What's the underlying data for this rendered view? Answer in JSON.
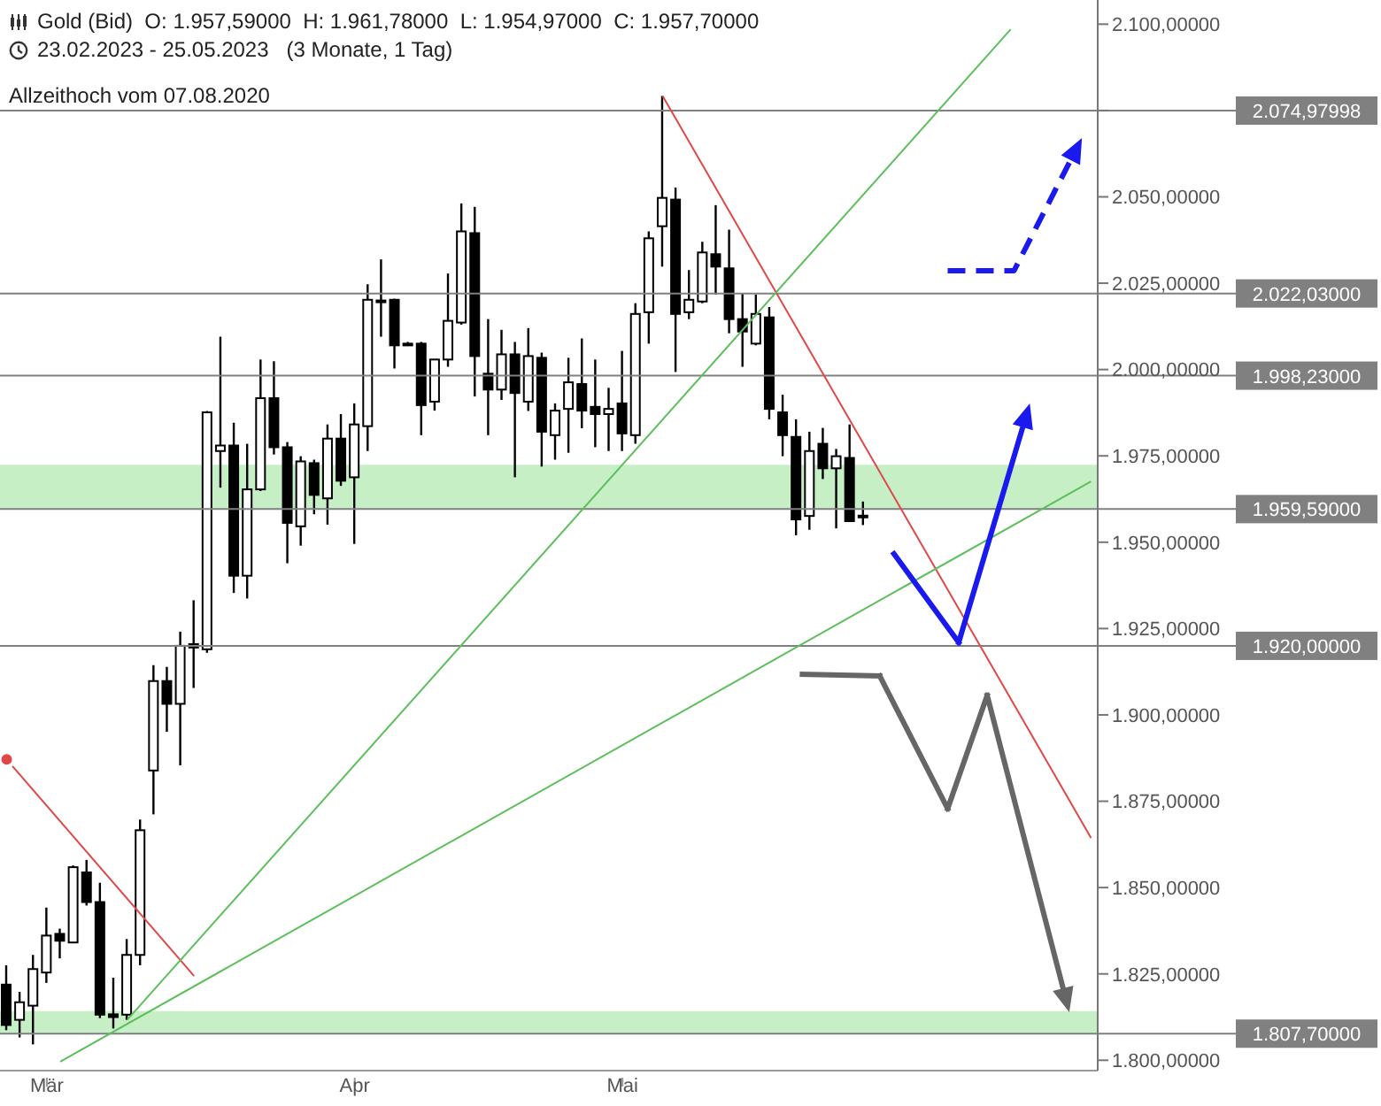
{
  "chart_data": {
    "type": "candlestick",
    "title": "Gold (Bid)  O: 1.957,59000  H: 1.961,78000  L: 1.954,97000  C: 1.957,70000",
    "subtitle": "23.02.2023 - 25.05.2023   (3 Monate, 1 Tag)",
    "annotations": [
      "Allzeithoch vom 07.08.2020"
    ],
    "color": "#000000",
    "legend": false,
    "grid": false,
    "categories": [
      null,
      null,
      null,
      "Mär",
      null,
      null,
      null,
      null,
      null,
      null,
      null,
      null,
      null,
      null,
      null,
      null,
      null,
      null,
      null,
      null,
      null,
      null,
      null,
      null,
      null,
      null,
      "Apr",
      null,
      null,
      null,
      null,
      null,
      null,
      null,
      null,
      null,
      null,
      null,
      null,
      null,
      null,
      null,
      null,
      null,
      null,
      null,
      "Mai",
      null,
      null,
      null,
      null,
      null,
      null,
      null,
      null,
      null,
      null,
      null,
      null,
      null,
      null,
      null,
      null,
      null,
      null,
      null,
      null,
      null,
      null,
      null,
      null,
      null,
      null,
      null,
      null,
      null,
      null,
      null,
      null,
      null,
      null,
      null
    ],
    "ohlc": [
      [
        1821.9,
        1827.5,
        1808.7,
        1810.2
      ],
      [
        1811.7,
        1819.8,
        1806.6,
        1816.8
      ],
      [
        1815.8,
        1830.5,
        1804.6,
        1826.4
      ],
      [
        1825.4,
        1844.2,
        1822.4,
        1836.1
      ],
      [
        1836.6,
        1838.1,
        1829.5,
        1834.6
      ],
      [
        1834.1,
        1856.4,
        1834.1,
        1855.9
      ],
      [
        1854.4,
        1858.0,
        1844.8,
        1845.8
      ],
      [
        1845.8,
        1851.4,
        1812.2,
        1813.2
      ],
      [
        1813.3,
        1823.9,
        1809.2,
        1812.5
      ],
      [
        1813.2,
        1835.1,
        1811.7,
        1830.5
      ],
      [
        1830.5,
        1869.7,
        1827.5,
        1866.6
      ],
      [
        1883.9,
        1914.4,
        1871.2,
        1909.8
      ],
      [
        1909.8,
        1913.9,
        1895.1,
        1903.2
      ],
      [
        1903.2,
        1924.1,
        1885.4,
        1920.0
      ],
      [
        1920.5,
        1933.2,
        1907.8,
        1919.5
      ],
      [
        1919.0,
        1988.0,
        1918.0,
        1987.6
      ],
      [
        1976.4,
        2009.5,
        1965.8,
        1978.0
      ],
      [
        1978.0,
        1984.6,
        1935.3,
        1940.3
      ],
      [
        1940.3,
        1978.5,
        1933.7,
        1965.3
      ],
      [
        1965.3,
        2002.9,
        1964.8,
        1991.7
      ],
      [
        1991.7,
        2002.4,
        1975.4,
        1977.5
      ],
      [
        1977.5,
        1979.0,
        1943.9,
        1955.6
      ],
      [
        1954.6,
        1974.9,
        1949.0,
        1973.4
      ],
      [
        1972.9,
        1973.9,
        1958.1,
        1963.7
      ],
      [
        1962.7,
        1984.1,
        1955.1,
        1980.0
      ],
      [
        1980.0,
        1987.1,
        1966.3,
        1967.8
      ],
      [
        1968.8,
        1990.2,
        1949.5,
        1984.1
      ],
      [
        1983.6,
        2024.7,
        1976.4,
        2020.2
      ],
      [
        2020.0,
        2031.9,
        2009.5,
        2019.5
      ],
      [
        2020.2,
        2020.5,
        2000.3,
        2007.0
      ],
      [
        2007.5,
        2008.0,
        2007.0,
        2007.5
      ],
      [
        2007.5,
        2008.0,
        1981.0,
        1989.7
      ],
      [
        1990.7,
        2003.0,
        1988.1,
        2002.9
      ],
      [
        2002.9,
        2027.8,
        2000.8,
        2014.1
      ],
      [
        2013.6,
        2048.1,
        2013.0,
        2040.0
      ],
      [
        2039.5,
        2047.1,
        1992.2,
        2003.9
      ],
      [
        1998.8,
        2014.6,
        1981.0,
        1994.2
      ],
      [
        1994.2,
        2011.5,
        1991.2,
        2004.4
      ],
      [
        2004.4,
        2008.0,
        1968.8,
        1993.2
      ],
      [
        1990.7,
        2012.0,
        1988.0,
        2003.9
      ],
      [
        2003.4,
        2004.9,
        1971.9,
        1982.0
      ],
      [
        1981.0,
        1990.2,
        1973.9,
        1988.1
      ],
      [
        1988.6,
        2003.4,
        1975.9,
        1996.3
      ],
      [
        1995.8,
        2009.0,
        1983.0,
        1988.1
      ],
      [
        1989.2,
        2002.9,
        1977.5,
        1987.1
      ],
      [
        1987.1,
        1994.7,
        1976.4,
        1988.6
      ],
      [
        1990.2,
        2005.4,
        1976.4,
        1981.5
      ],
      [
        1981.0,
        2019.2,
        1978.5,
        2016.1
      ],
      [
        2016.6,
        2040.0,
        2007.5,
        2038.0
      ],
      [
        2041.5,
        2079.2,
        2029.8,
        2049.7
      ],
      [
        2049.2,
        2052.7,
        1999.3,
        2016.1
      ],
      [
        2016.6,
        2028.8,
        2014.6,
        2020.2
      ],
      [
        2019.7,
        2037.0,
        2019.2,
        2033.9
      ],
      [
        2033.4,
        2047.6,
        2021.7,
        2029.8
      ],
      [
        2029.3,
        2040.5,
        2010.5,
        2014.6
      ],
      [
        2014.6,
        2022.2,
        2000.8,
        2011.0
      ],
      [
        2007.5,
        2021.7,
        2007.0,
        2016.1
      ],
      [
        2015.1,
        2018.1,
        1985.6,
        1988.6
      ],
      [
        1987.6,
        1992.7,
        1974.9,
        1981.0
      ],
      [
        1980.5,
        1985.6,
        1952.0,
        1956.6
      ],
      [
        1957.6,
        1982.0,
        1953.6,
        1976.4
      ],
      [
        1978.5,
        1983.1,
        1968.3,
        1971.4
      ],
      [
        1971.4,
        1977.0,
        1954.0,
        1974.9
      ],
      [
        1974.4,
        1984.1,
        1956.0,
        1956.1
      ],
      [
        1957.59,
        1961.78,
        1954.97,
        1957.7
      ],
      null,
      null,
      null,
      null,
      null,
      null,
      null,
      null,
      null,
      null,
      null,
      null,
      null,
      null,
      null,
      null,
      null
    ],
    "series": [
      {
        "type": "line",
        "color": "#e04848",
        "values": [
          1887.1,
          null,
          null,
          null,
          null,
          null,
          null,
          null,
          null,
          null,
          null,
          null,
          null,
          null,
          1824.4,
          null,
          null,
          null,
          null,
          null,
          null,
          null,
          null,
          null,
          null,
          null,
          null,
          null,
          null,
          null,
          null,
          null,
          null,
          null,
          null,
          null,
          null,
          null,
          null,
          null,
          null,
          null,
          null,
          null,
          null,
          null,
          null,
          null,
          null,
          null,
          null,
          null,
          null,
          null,
          null,
          null,
          null,
          null,
          null,
          null,
          null,
          null,
          null,
          null,
          null,
          null,
          null,
          null,
          null,
          null,
          null,
          null,
          null,
          null,
          null,
          null,
          null,
          null,
          null,
          null,
          null,
          null
        ]
      },
      {
        "type": "line",
        "color": "#e04848",
        "values": [
          null,
          null,
          null,
          null,
          null,
          null,
          null,
          null,
          null,
          null,
          null,
          null,
          null,
          null,
          null,
          null,
          null,
          null,
          null,
          null,
          null,
          null,
          null,
          null,
          null,
          null,
          null,
          null,
          null,
          null,
          null,
          null,
          null,
          null,
          null,
          null,
          null,
          null,
          null,
          null,
          null,
          null,
          null,
          null,
          null,
          null,
          null,
          null,
          null,
          2079.2,
          null,
          null,
          null,
          null,
          null,
          null,
          null,
          null,
          null,
          null,
          null,
          null,
          null,
          null,
          null,
          null,
          null,
          null,
          null,
          null,
          null,
          null,
          null,
          null,
          null,
          null,
          null,
          null,
          null,
          null,
          null,
          1864.4
        ]
      },
      {
        "type": "line",
        "color": "#5cbf5c",
        "values": [
          null,
          null,
          null,
          null,
          null,
          null,
          null,
          null,
          null,
          1811.7,
          null,
          null,
          null,
          null,
          null,
          null,
          null,
          null,
          null,
          null,
          null,
          null,
          null,
          null,
          null,
          null,
          null,
          null,
          null,
          null,
          null,
          null,
          null,
          null,
          null,
          null,
          null,
          null,
          null,
          null,
          null,
          null,
          null,
          null,
          null,
          null,
          null,
          null,
          null,
          null,
          null,
          null,
          null,
          null,
          null,
          null,
          null,
          null,
          null,
          null,
          null,
          null,
          null,
          null,
          null,
          null,
          null,
          null,
          null,
          null,
          null,
          null,
          null,
          null,
          null,
          2098.5,
          null,
          null,
          null,
          null,
          null,
          null
        ]
      },
      {
        "type": "line",
        "color": "#5cbf5c",
        "values": [
          null,
          null,
          null,
          null,
          1799.6,
          null,
          null,
          null,
          null,
          null,
          null,
          null,
          null,
          null,
          null,
          null,
          null,
          null,
          null,
          null,
          null,
          null,
          null,
          null,
          null,
          null,
          null,
          null,
          null,
          null,
          null,
          null,
          null,
          null,
          null,
          null,
          null,
          null,
          null,
          null,
          null,
          null,
          null,
          null,
          null,
          null,
          null,
          null,
          null,
          null,
          null,
          null,
          null,
          null,
          null,
          null,
          null,
          null,
          null,
          null,
          null,
          null,
          null,
          null,
          null,
          null,
          null,
          null,
          null,
          null,
          null,
          null,
          null,
          null,
          null,
          null,
          null,
          null,
          null,
          null,
          null,
          1967.6
        ]
      }
    ],
    "ylim": [
      1797,
      2107
    ],
    "yticks": [
      {
        "value": 1800,
        "label": "1.800,00000"
      },
      {
        "value": 1825,
        "label": "1.825,00000"
      },
      {
        "value": 1850,
        "label": "1.850,00000"
      },
      {
        "value": 1875,
        "label": "1.875,00000"
      },
      {
        "value": 1900,
        "label": "1.900,00000"
      },
      {
        "value": 1925,
        "label": "1.925,00000"
      },
      {
        "value": 1950,
        "label": "1.950,00000"
      },
      {
        "value": 1975,
        "label": "1.975,00000"
      },
      {
        "value": 2000,
        "label": "2.000,00000"
      },
      {
        "value": 2025,
        "label": "2.025,00000"
      },
      {
        "value": 2050,
        "label": "2.050,00000"
      },
      {
        "value": 2075,
        "label": null
      },
      {
        "value": 2100,
        "label": "2.100,00000"
      }
    ],
    "ref_lines": [
      {
        "axis": "y",
        "value": 2074.97998,
        "label": "2.074,97998",
        "color": "#808080"
      },
      {
        "axis": "y",
        "value": 2022.03,
        "label": "2.022,03000",
        "color": "#808080"
      },
      {
        "axis": "y",
        "value": 1998.23,
        "label": "1.998,23000",
        "color": "#808080"
      },
      {
        "axis": "y",
        "value": 1959.59,
        "label": "1.959,59000",
        "color": "#808080"
      },
      {
        "axis": "y",
        "value": 1920.0,
        "label": "1.920,00000",
        "color": "#808080"
      },
      {
        "axis": "y",
        "value": 1807.7,
        "label": "1.807,70000",
        "color": "#808080"
      }
    ],
    "bands": [
      {
        "axis": "y",
        "from": 1959.59,
        "to": 1972.4,
        "color": "#c6efc6"
      },
      {
        "axis": "y",
        "from": 1807.7,
        "to": 1814.2,
        "color": "#c6efc6"
      }
    ]
  }
}
